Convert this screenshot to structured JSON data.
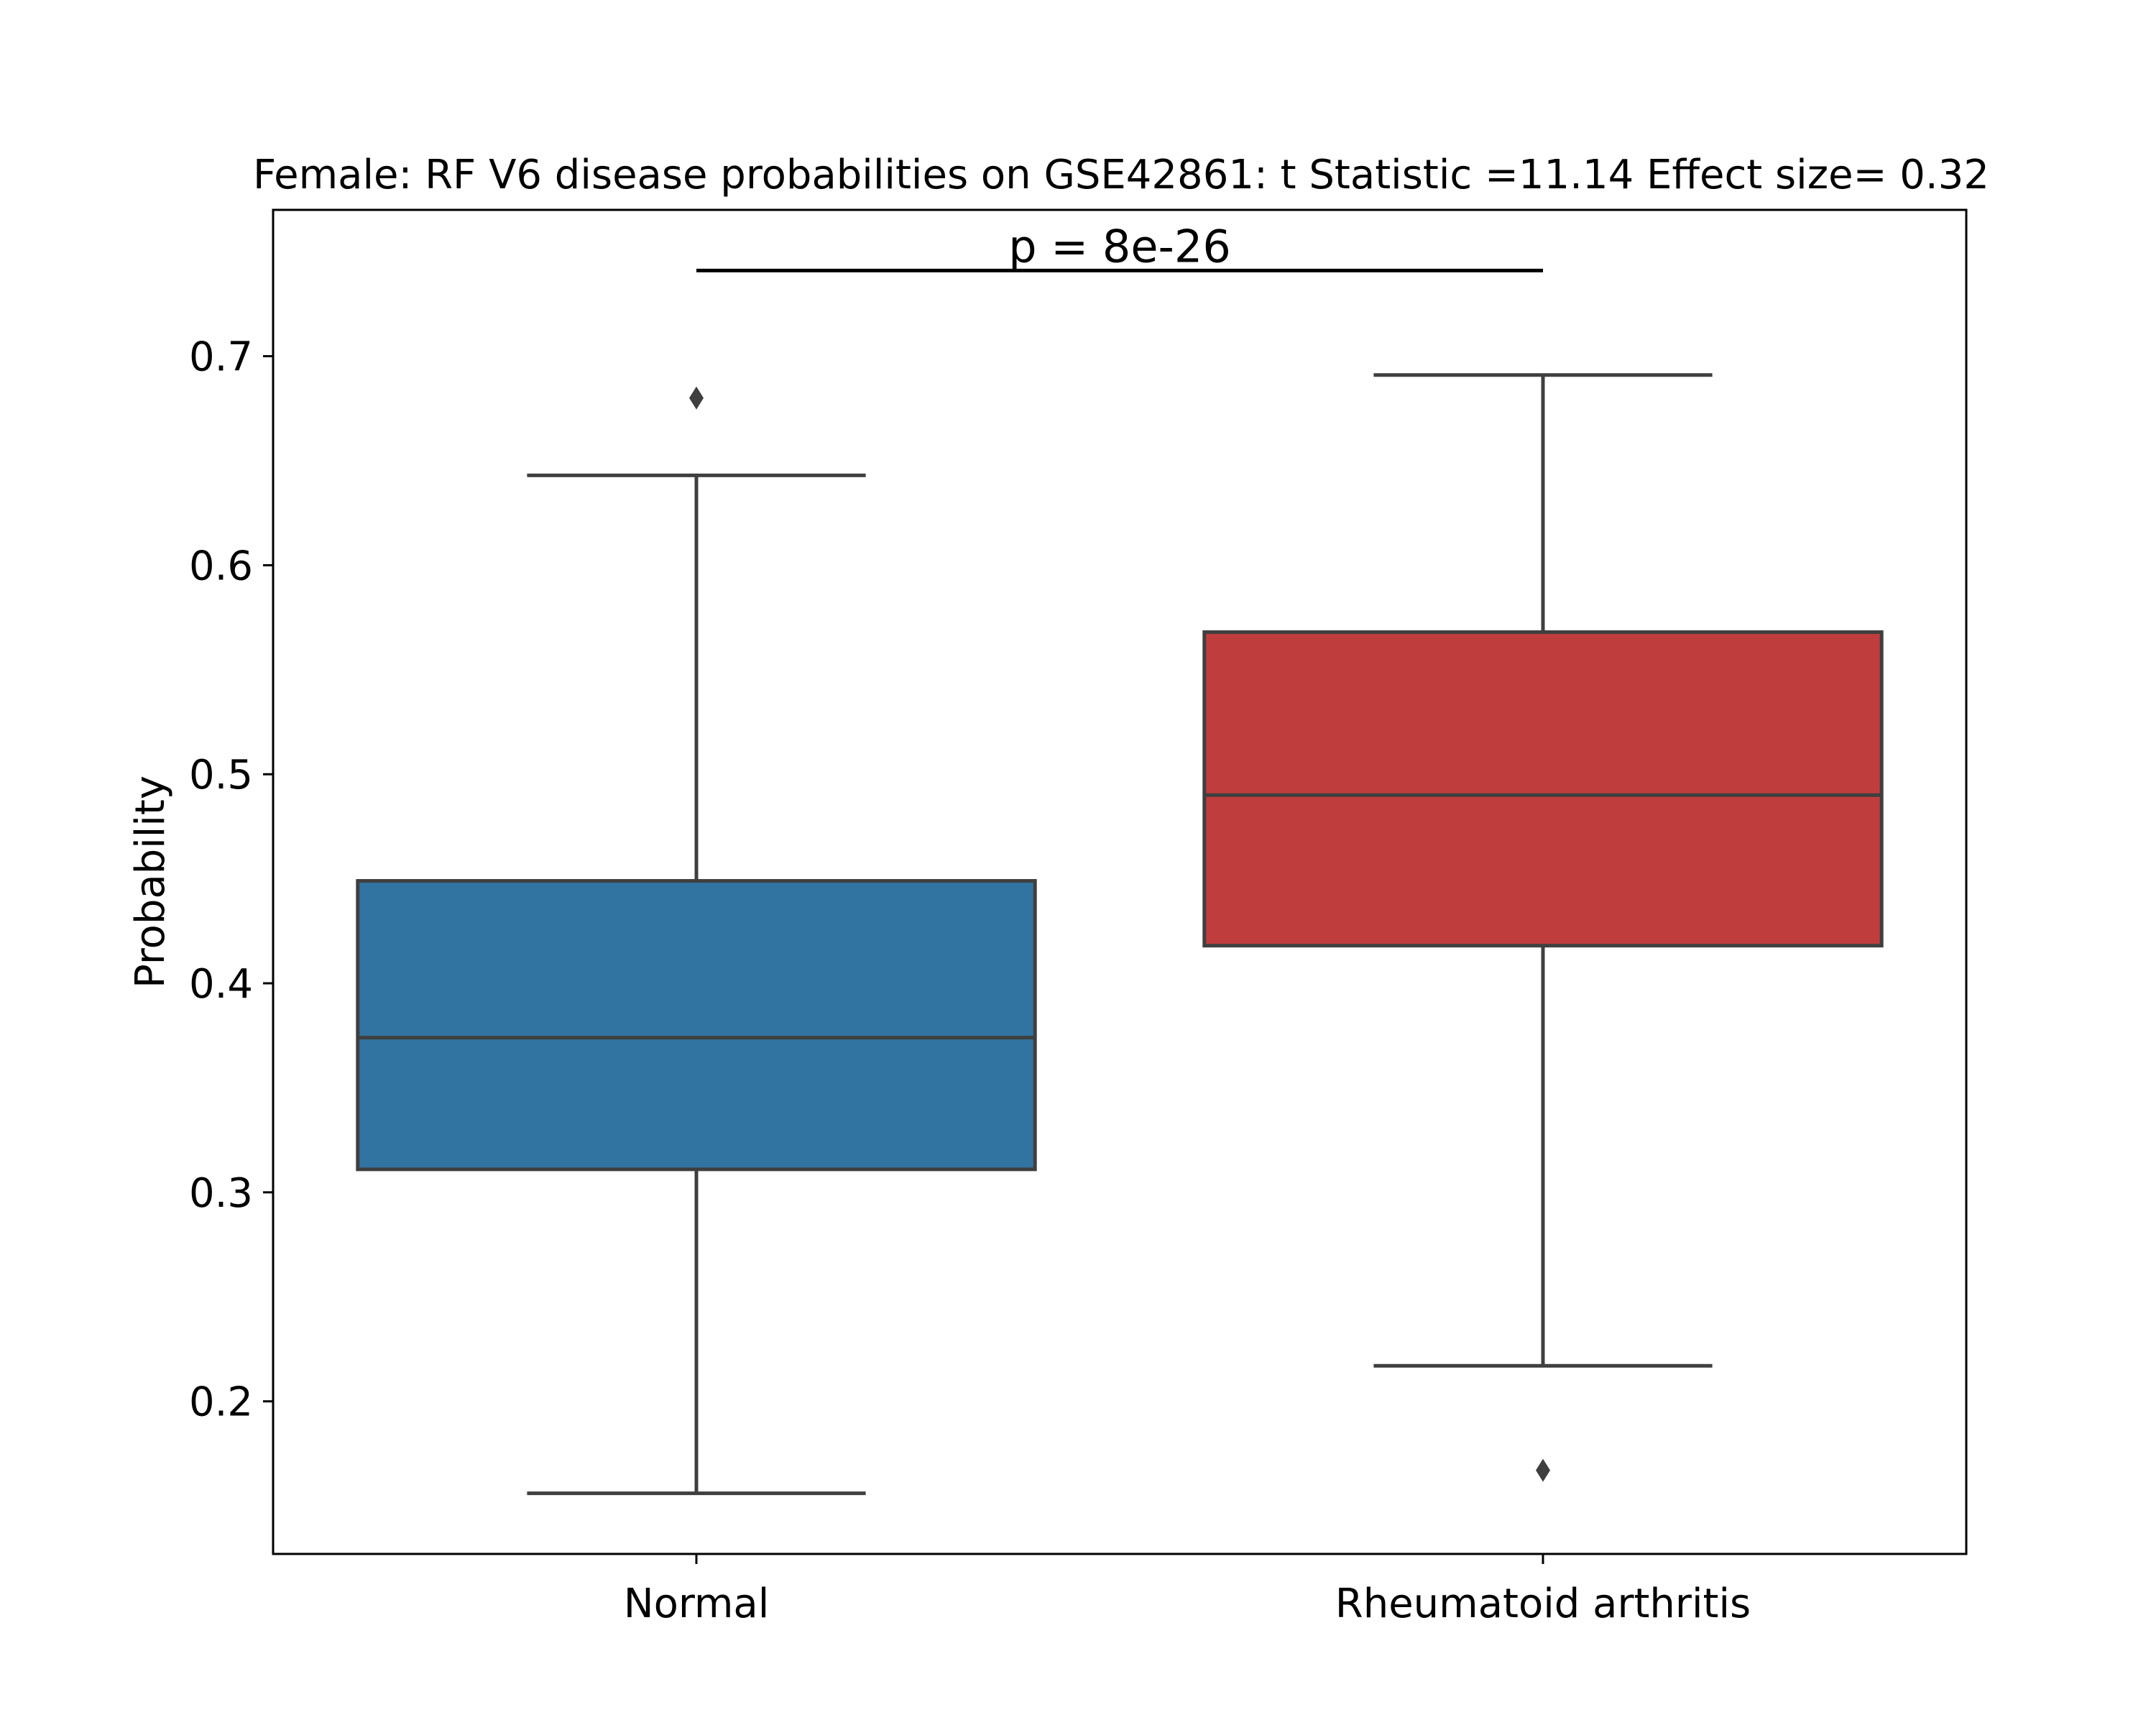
{
  "chart_data": {
    "type": "box",
    "title": "Female: RF V6 disease probabilities on GSE42861: t Statistic =11.14 Effect size= 0.32",
    "xlabel": "",
    "ylabel": "Probability",
    "ylim": [
      0.127,
      0.77
    ],
    "yticks": [
      0.2,
      0.3,
      0.4,
      0.5,
      0.6,
      0.7
    ],
    "ytick_labels": [
      "0.2",
      "0.3",
      "0.4",
      "0.5",
      "0.6",
      "0.7"
    ],
    "categories": [
      "Normal",
      "Rheumatoid arthritis"
    ],
    "boxes": [
      {
        "category": "Normal",
        "color": "#3274a1",
        "whisker_low": 0.156,
        "q1": 0.311,
        "median": 0.374,
        "q3": 0.449,
        "whisker_high": 0.643,
        "outliers": [
          0.68
        ]
      },
      {
        "category": "Rheumatoid arthritis",
        "color": "#c03d3e",
        "whisker_low": 0.217,
        "q1": 0.418,
        "median": 0.49,
        "q3": 0.568,
        "whisker_high": 0.691,
        "outliers": [
          0.167
        ]
      }
    ],
    "annotation": {
      "text": "p = 8e-26",
      "y": 0.741
    },
    "grid": false,
    "legend": "none"
  }
}
